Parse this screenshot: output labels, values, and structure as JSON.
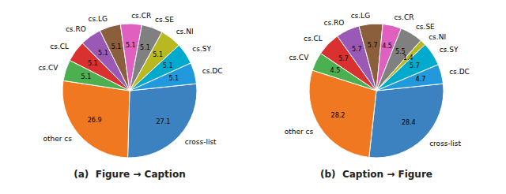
{
  "chart_data": [
    {
      "type": "pie",
      "title": "(a)  Figure → Caption",
      "categories": [
        "cross-list",
        "other cs",
        "cs.CV",
        "cs.CL",
        "cs.RO",
        "cs.LG",
        "cs.CR",
        "cs.SE",
        "cs.NI",
        "cs.SY",
        "cs.DC"
      ],
      "values": [
        27.1,
        26.9,
        5.1,
        5.1,
        5.1,
        5.1,
        5.1,
        5.1,
        5.1,
        5.1,
        5.1
      ],
      "colors": [
        "#3d82c0",
        "#f07820",
        "#4caf50",
        "#d93030",
        "#9b59b6",
        "#8b5e3c",
        "#e060c0",
        "#808080",
        "#b8b820",
        "#00aacc",
        "#2299dd"
      ],
      "data_labels": true
    },
    {
      "type": "pie",
      "title": "(b)  Caption → Figure",
      "categories": [
        "cross-list",
        "other cs",
        "cs.CV",
        "cs.CL",
        "cs.RO",
        "cs.LG",
        "cs.CR",
        "cs.SE",
        "cs.NI",
        "cs.SY",
        "cs.DC"
      ],
      "values": [
        28.4,
        28.2,
        4.5,
        5.7,
        5.7,
        5.7,
        4.5,
        5.5,
        1.4,
        5.7,
        4.7
      ],
      "colors": [
        "#3d82c0",
        "#f07820",
        "#4caf50",
        "#d93030",
        "#9b59b6",
        "#8b5e3c",
        "#e060c0",
        "#808080",
        "#b8b820",
        "#00aacc",
        "#2299dd"
      ],
      "data_labels": true
    }
  ]
}
